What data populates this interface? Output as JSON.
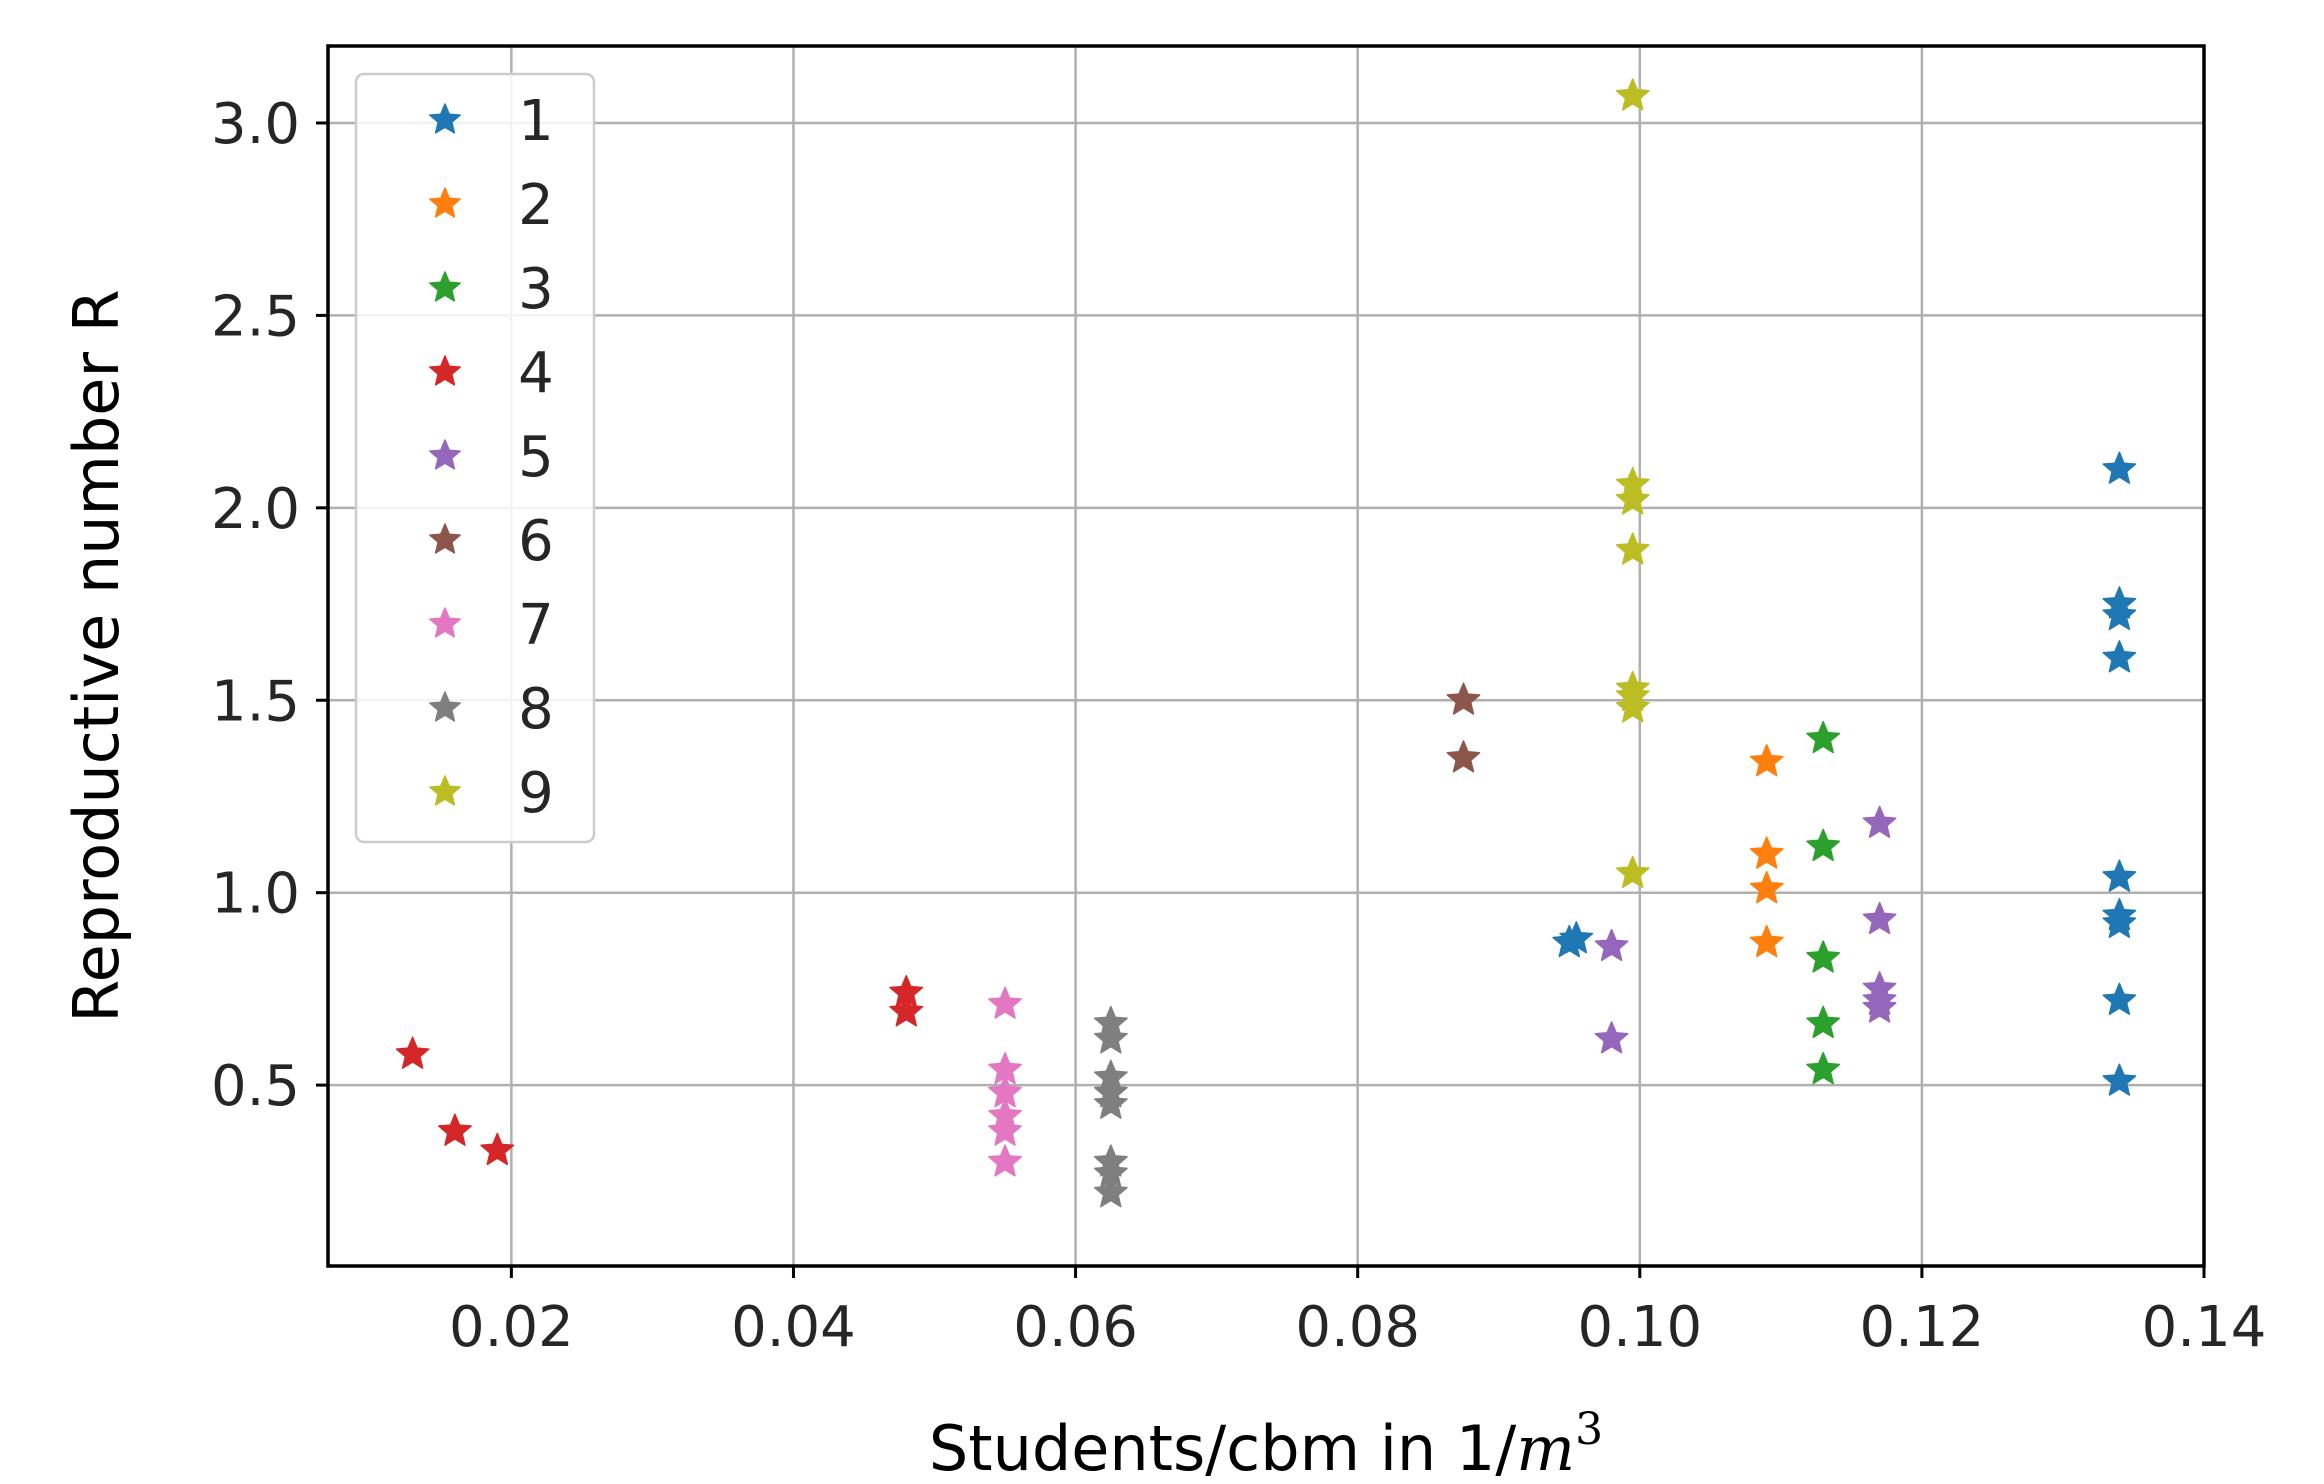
{
  "chart_data": {
    "type": "scatter",
    "title": "",
    "xlabel": "Students/cbm in 1/",
    "xlabel_math": "m",
    "xlabel_exponent": "3",
    "ylabel": "Reproductive number R",
    "xlim": [
      0.007,
      0.14
    ],
    "ylim": [
      0.03,
      3.2
    ],
    "xticks": [
      0.02,
      0.04,
      0.06,
      0.08,
      0.1,
      0.12,
      0.14
    ],
    "xtick_labels": [
      "0.02",
      "0.04",
      "0.06",
      "0.08",
      "0.10",
      "0.12",
      "0.14"
    ],
    "yticks": [
      0.5,
      1.0,
      1.5,
      2.0,
      2.5,
      3.0
    ],
    "ytick_labels": [
      "0.5",
      "1.0",
      "1.5",
      "2.0",
      "2.5",
      "3.0"
    ],
    "grid": true,
    "legend_position": "top-left",
    "marker": "star",
    "series": [
      {
        "name": "1",
        "color": "#1f77b4",
        "points": [
          [
            0.134,
            2.1
          ],
          [
            0.134,
            1.75
          ],
          [
            0.134,
            1.72
          ],
          [
            0.134,
            1.61
          ],
          [
            0.134,
            1.04
          ],
          [
            0.134,
            0.94
          ],
          [
            0.134,
            0.92
          ],
          [
            0.134,
            0.72
          ],
          [
            0.134,
            0.51
          ],
          [
            0.0955,
            0.88
          ],
          [
            0.095,
            0.87
          ]
        ]
      },
      {
        "name": "2",
        "color": "#ff7f0e",
        "points": [
          [
            0.109,
            1.34
          ],
          [
            0.109,
            1.1
          ],
          [
            0.109,
            1.01
          ],
          [
            0.109,
            0.87
          ]
        ]
      },
      {
        "name": "3",
        "color": "#2ca02c",
        "points": [
          [
            0.113,
            1.4
          ],
          [
            0.113,
            1.12
          ],
          [
            0.113,
            0.83
          ],
          [
            0.113,
            0.66
          ],
          [
            0.113,
            0.54
          ]
        ]
      },
      {
        "name": "4",
        "color": "#d62728",
        "points": [
          [
            0.013,
            0.58
          ],
          [
            0.016,
            0.38
          ],
          [
            0.019,
            0.33
          ],
          [
            0.048,
            0.74
          ],
          [
            0.048,
            0.69
          ]
        ]
      },
      {
        "name": "5",
        "color": "#9467bd",
        "points": [
          [
            0.117,
            1.18
          ],
          [
            0.117,
            0.93
          ],
          [
            0.117,
            0.75
          ],
          [
            0.117,
            0.72
          ],
          [
            0.117,
            0.7
          ],
          [
            0.098,
            0.86
          ],
          [
            0.098,
            0.62
          ]
        ]
      },
      {
        "name": "6",
        "color": "#8c564b",
        "points": [
          [
            0.0875,
            1.5
          ],
          [
            0.0875,
            1.35
          ]
        ]
      },
      {
        "name": "7",
        "color": "#e377c2",
        "points": [
          [
            0.055,
            0.71
          ],
          [
            0.055,
            0.54
          ],
          [
            0.055,
            0.48
          ],
          [
            0.055,
            0.42
          ],
          [
            0.055,
            0.38
          ],
          [
            0.055,
            0.3
          ]
        ]
      },
      {
        "name": "8",
        "color": "#7f7f7f",
        "points": [
          [
            0.0625,
            0.66
          ],
          [
            0.0625,
            0.62
          ],
          [
            0.0625,
            0.52
          ],
          [
            0.0625,
            0.48
          ],
          [
            0.0625,
            0.45
          ],
          [
            0.0625,
            0.3
          ],
          [
            0.0625,
            0.27
          ],
          [
            0.0625,
            0.22
          ]
        ]
      },
      {
        "name": "9",
        "color": "#bcbd22",
        "points": [
          [
            0.0995,
            3.07
          ],
          [
            0.0995,
            2.06
          ],
          [
            0.0995,
            2.02
          ],
          [
            0.0995,
            1.89
          ],
          [
            0.0995,
            1.53
          ],
          [
            0.0995,
            1.51
          ],
          [
            0.0995,
            1.48
          ],
          [
            0.0995,
            1.05
          ]
        ]
      }
    ]
  }
}
